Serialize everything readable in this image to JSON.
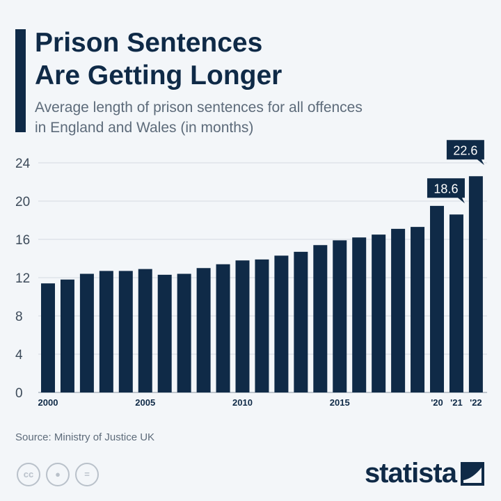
{
  "header": {
    "title_line1": "Prison Sentences",
    "title_line2": "Are Getting Longer",
    "subtitle_line1": "Average length of prison sentences for all offences",
    "subtitle_line2": "in England and Wales (in months)"
  },
  "footer": {
    "source": "Source: Ministry of Justice UK",
    "brand": "statista",
    "license_icons": [
      "cc-icon",
      "attribution-icon",
      "no-derivatives-icon"
    ]
  },
  "colors": {
    "bar": "#0f2a47",
    "background": "#f3f6f9",
    "grid": "#d5dbe1"
  },
  "chart_data": {
    "type": "bar",
    "categories": [
      "2000",
      "2001",
      "2002",
      "2003",
      "2004",
      "2005",
      "2006",
      "2007",
      "2008",
      "2009",
      "2010",
      "2011",
      "2012",
      "2013",
      "2014",
      "2015",
      "2016",
      "2017",
      "2018",
      "2019",
      "2020",
      "2021",
      "2022"
    ],
    "tick_labels": {
      "2000": "2000",
      "2005": "2005",
      "2010": "2010",
      "2015": "2015",
      "2020": "'20",
      "2021": "'21",
      "2022": "'22"
    },
    "values": [
      11.4,
      11.8,
      12.4,
      12.7,
      12.7,
      12.9,
      12.3,
      12.4,
      13.0,
      13.4,
      13.8,
      13.9,
      14.3,
      14.7,
      15.4,
      15.9,
      16.2,
      16.5,
      17.1,
      17.3,
      19.5,
      18.6,
      22.6
    ],
    "data_labels": {
      "2021": "18.6",
      "2022": "22.6"
    },
    "yticks": [
      0,
      4,
      8,
      12,
      16,
      20,
      24
    ],
    "ylim": [
      0,
      24
    ],
    "grid": true,
    "title": "Prison Sentences Are Getting Longer",
    "ylabel": "",
    "xlabel": ""
  }
}
